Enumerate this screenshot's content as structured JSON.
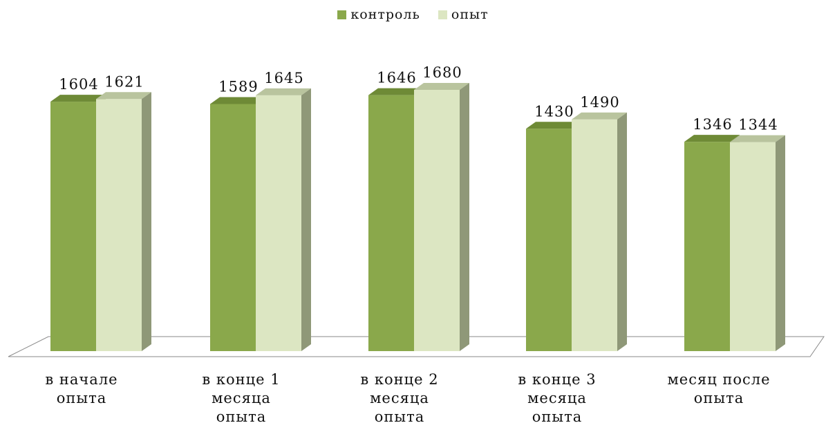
{
  "chart_data": {
    "type": "bar",
    "subtype": "3d-clustered-column",
    "categories": [
      [
        "в начале",
        "опыта"
      ],
      [
        "в конце 1",
        "месяца",
        "опыта"
      ],
      [
        "в конце 2",
        "месяца",
        "опыта"
      ],
      [
        "в конце 3",
        "месяца",
        "опыта"
      ],
      [
        "месяц после",
        "опыта"
      ]
    ],
    "series": [
      {
        "name": "контроль",
        "values": [
          1604,
          1589,
          1646,
          1430,
          1346
        ],
        "color": "#8aa84b",
        "top_color": "#6e8a36",
        "side_color": "#6f8a3c"
      },
      {
        "name": "опыт",
        "values": [
          1621,
          1645,
          1680,
          1490,
          1344
        ],
        "color": "#dce6c2",
        "top_color": "#b9c49e",
        "side_color": "#8f9878"
      }
    ],
    "title": "",
    "xlabel": "",
    "ylabel": "",
    "ylim": [
      0,
      1680
    ],
    "grid": false,
    "legend_position": "top"
  }
}
